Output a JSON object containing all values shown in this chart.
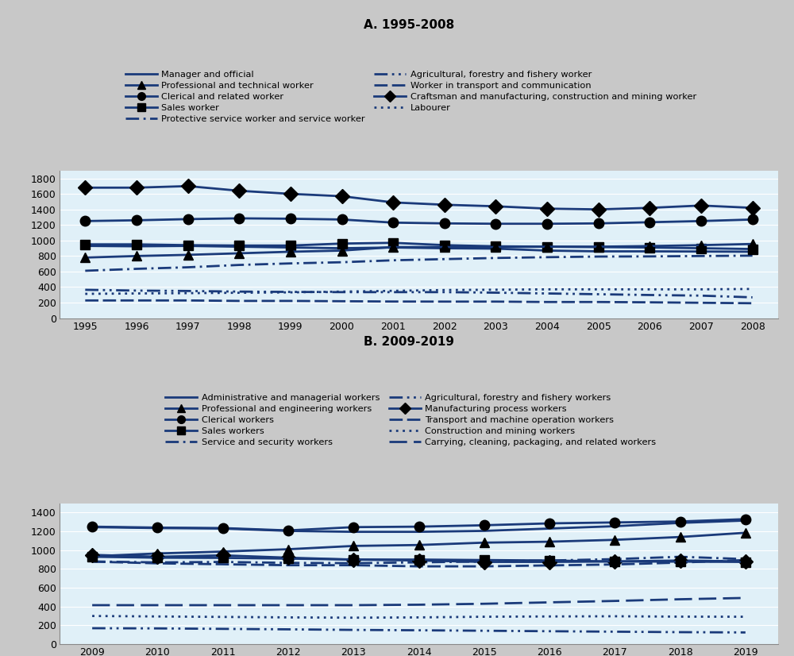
{
  "title_a": "A. 1995-2008",
  "title_b": "B. 2009-2019",
  "fig_bg": "#c8c8c8",
  "plot_bg": "#e0f0f8",
  "legend_bg": "#d0d0d0",
  "line_color": "#1a3a7a",
  "years_a": [
    1995,
    1996,
    1997,
    1998,
    1999,
    2000,
    2001,
    2002,
    2003,
    2004,
    2005,
    2006,
    2007,
    2008
  ],
  "years_b": [
    2009,
    2010,
    2011,
    2012,
    2013,
    2014,
    2015,
    2016,
    2017,
    2018,
    2019
  ],
  "series_a": {
    "craftsman": [
      1680,
      1680,
      1700,
      1640,
      1600,
      1570,
      1490,
      1460,
      1440,
      1410,
      1400,
      1420,
      1450,
      1420
    ],
    "clerical": [
      1250,
      1260,
      1275,
      1285,
      1280,
      1270,
      1230,
      1220,
      1215,
      1215,
      1220,
      1235,
      1250,
      1270
    ],
    "sales": [
      950,
      950,
      940,
      935,
      935,
      960,
      970,
      940,
      925,
      920,
      915,
      910,
      900,
      890
    ],
    "manager": [
      930,
      925,
      930,
      920,
      910,
      900,
      910,
      900,
      895,
      870,
      860,
      860,
      858,
      855
    ],
    "professional": [
      780,
      800,
      815,
      835,
      855,
      870,
      915,
      915,
      915,
      920,
      920,
      928,
      940,
      955
    ],
    "protective_service": [
      610,
      635,
      655,
      685,
      705,
      720,
      745,
      760,
      775,
      785,
      793,
      795,
      800,
      805
    ],
    "agricultural": [
      365,
      355,
      350,
      342,
      338,
      335,
      335,
      335,
      328,
      318,
      308,
      298,
      290,
      268
    ],
    "labourer": [
      313,
      318,
      322,
      327,
      332,
      342,
      352,
      362,
      366,
      371,
      371,
      371,
      371,
      376
    ],
    "transport": [
      228,
      228,
      228,
      222,
      222,
      218,
      214,
      213,
      213,
      208,
      208,
      204,
      198,
      192
    ]
  },
  "series_b": {
    "clerical": [
      1250,
      1240,
      1235,
      1210,
      1245,
      1250,
      1265,
      1285,
      1295,
      1305,
      1330
    ],
    "admin_managerial": [
      1245,
      1235,
      1230,
      1205,
      1195,
      1195,
      1205,
      1230,
      1255,
      1290,
      1315
    ],
    "professional_eng": [
      935,
      965,
      985,
      1010,
      1045,
      1055,
      1080,
      1090,
      1110,
      1140,
      1185
    ],
    "manufacturing": [
      950,
      930,
      945,
      920,
      900,
      890,
      875,
      875,
      880,
      890,
      880
    ],
    "sales": [
      930,
      920,
      918,
      910,
      900,
      900,
      895,
      890,
      880,
      878,
      875
    ],
    "service_security": [
      880,
      870,
      875,
      865,
      862,
      870,
      880,
      890,
      905,
      930,
      905
    ],
    "transport_machine": [
      878,
      860,
      850,
      840,
      840,
      828,
      828,
      838,
      848,
      868,
      895
    ],
    "carrying_cleaning": [
      415,
      415,
      415,
      415,
      415,
      420,
      430,
      445,
      460,
      478,
      492
    ],
    "construction": [
      300,
      295,
      290,
      285,
      282,
      285,
      292,
      295,
      297,
      293,
      292
    ],
    "agricultural": [
      170,
      168,
      163,
      158,
      152,
      148,
      143,
      138,
      133,
      128,
      125
    ]
  },
  "ylim_a": [
    0,
    1900
  ],
  "ylim_b": [
    0,
    1500
  ],
  "yticks_a": [
    0,
    200,
    400,
    600,
    800,
    1000,
    1200,
    1400,
    1600,
    1800
  ],
  "yticks_b": [
    0,
    200,
    400,
    600,
    800,
    1000,
    1200,
    1400
  ],
  "legend_a_left": [
    "Manager and official",
    "Clerical and related worker",
    "Protective service worker and service worker",
    "Worker in transport and communication",
    "Labourer"
  ],
  "legend_a_right": [
    "Professional and technical worker",
    "Sales worker",
    "Agricultural, forestry and fishery worker",
    "Craftsman and manufacturing, construction and mining worker"
  ],
  "legend_b_left": [
    "Administrative and managerial workers",
    "Clerical workers",
    "Service and security workers",
    "Manufacturing process workers",
    "Construction and mining workers"
  ],
  "legend_b_right": [
    "Professional and engineering workers",
    "Sales workers",
    "Agricultural, forestry and fishery workers",
    "Transport and machine operation workers",
    "Carrying, cleaning, packaging, and related workers"
  ]
}
